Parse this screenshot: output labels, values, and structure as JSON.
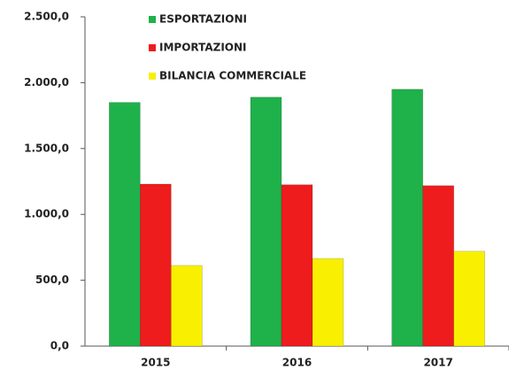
{
  "chart_data": {
    "type": "bar",
    "categories": [
      "2015",
      "2016",
      "2017"
    ],
    "series": [
      {
        "name": "ESPORTAZIONI",
        "color": "#1fb14a",
        "values": [
          1850,
          1890,
          1950
        ]
      },
      {
        "name": "IMPORTAZIONI",
        "color": "#ee1c1c",
        "values": [
          1230,
          1225,
          1218
        ]
      },
      {
        "name": "BILANCIA COMMERCIALE",
        "color": "#f8f000",
        "values": [
          612,
          665,
          720
        ]
      }
    ],
    "ylim": [
      0,
      2500
    ],
    "yticks": [
      {
        "value": 0,
        "label": "0,0"
      },
      {
        "value": 500,
        "label": "500,0"
      },
      {
        "value": 1000,
        "label": "1.000,0"
      },
      {
        "value": 1500,
        "label": "1.500,0"
      },
      {
        "value": 2000,
        "label": "2.000,0"
      },
      {
        "value": 2500,
        "label": "2.500,0"
      }
    ],
    "legend": "top-left"
  }
}
